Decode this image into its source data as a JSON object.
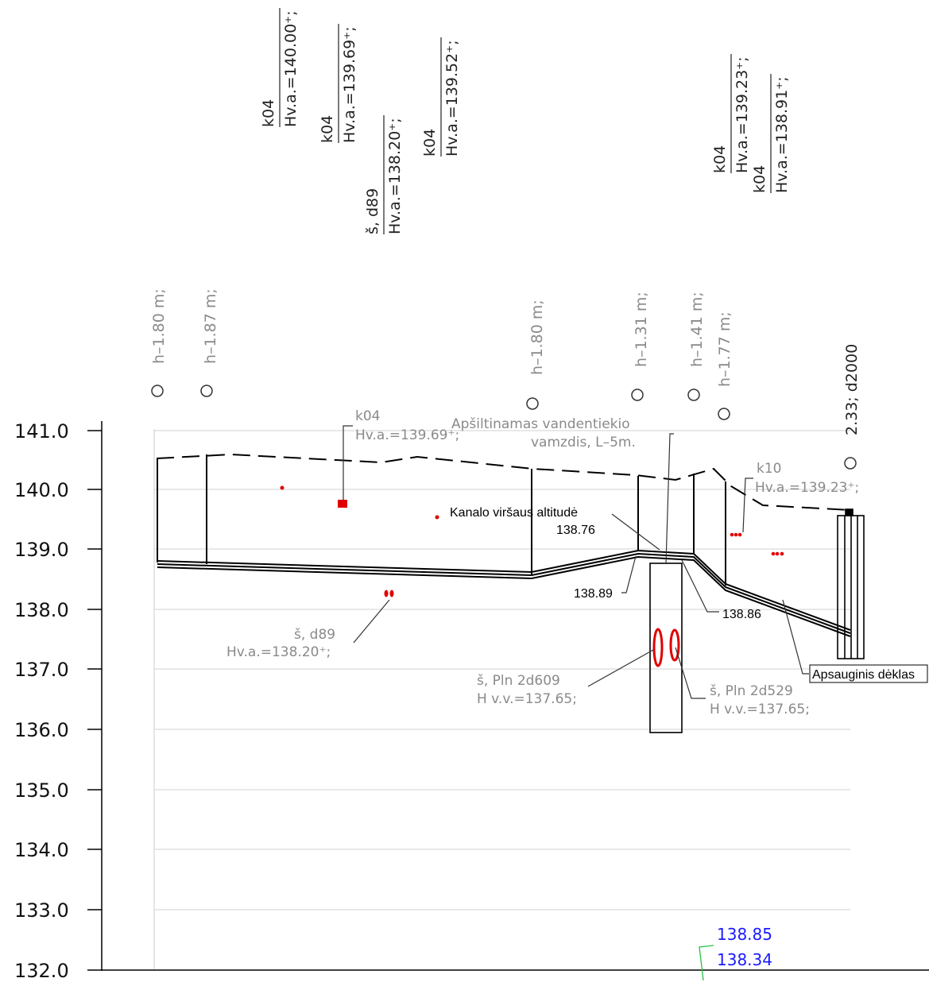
{
  "y_axis": {
    "labels": [
      "141.0",
      "140.0",
      "139.0",
      "138.0",
      "137.0",
      "136.0",
      "135.0",
      "134.0",
      "133.0",
      "132.0"
    ]
  },
  "pipe_top_labels": [
    {
      "line1": "k04",
      "line2": "Hv.a.=140.00⁺;"
    },
    {
      "line1": "k04",
      "line2": "Hv.a.=139.69⁺;"
    },
    {
      "line1": "š,  d89",
      "line2": "Hv.a.=138.20⁺;"
    },
    {
      "line1": "k04",
      "line2": "Hv.a.=139.52⁺;"
    },
    {
      "line1": "k04",
      "line2": "Hv.a.=139.23⁺;"
    },
    {
      "line1": "k04",
      "line2": "Hv.a.=138.91⁺;"
    }
  ],
  "depth_labels": [
    "h–1.80 m;",
    "h–1.87 m;",
    "h–1.80 m;",
    "h–1.31 m;",
    "h–1.41 m;",
    "h–1.77 m;"
  ],
  "well_label": "2.33; d2000",
  "annotations": {
    "k04_line1": "k04",
    "k04_line2": "Hv.a.=139.69⁺;",
    "insulated_line1": "Apšiltinamas vandentiekio",
    "insulated_line2": "vamzdis,  L–5m.",
    "k10_line1": "k10",
    "k10_line2": "Hv.a.=139.23⁺;",
    "canal_top": "Kanalo viršaus altitudė",
    "alt_13876": "138.76",
    "alt_13889": "138.89",
    "alt_13886": "138.86",
    "d89_line1": "š,  d89",
    "d89_line2": "Hv.a.=138.20⁺;",
    "pln609_line1": "š,  Pln  2d609",
    "pln609_line2": "H v.v.=137.65;",
    "pln529_line1": "š,  Pln  2d529",
    "pln529_line2": "H v.v.=137.65;",
    "sleeve": "Apsauginis dėklas"
  },
  "bottom_values": [
    "138.85",
    "138.34"
  ],
  "colors": {
    "grid": "#d9d9d9",
    "line": "#000000",
    "label_grey": "#8a8a8a",
    "utility_red": "#e00000",
    "elevation_blue": "#1a1aff",
    "leader_green": "#27c24c"
  }
}
